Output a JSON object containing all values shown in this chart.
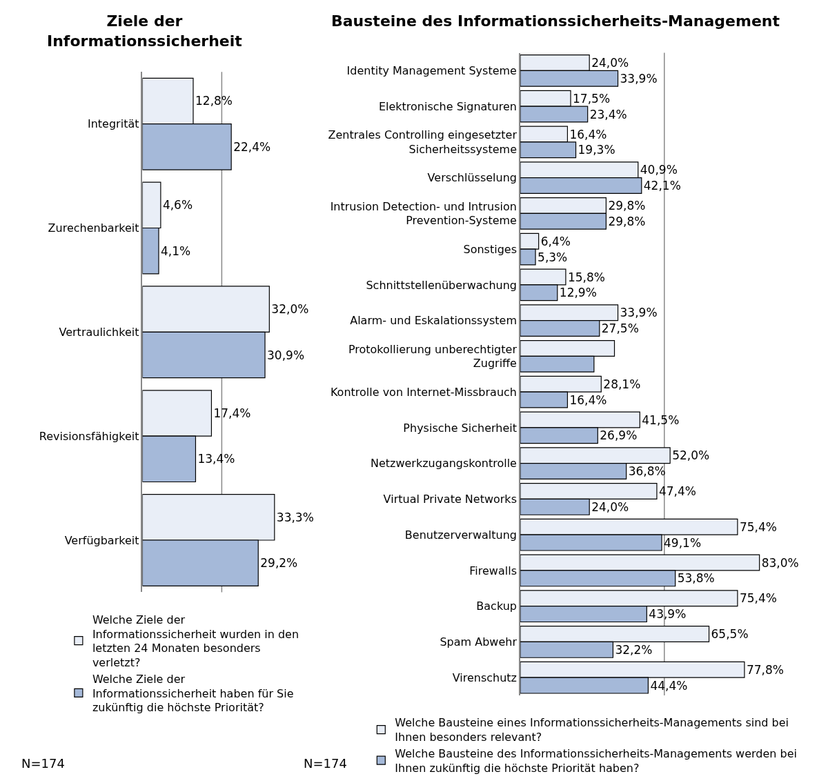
{
  "chart_data": [
    {
      "type": "bar",
      "orientation": "horizontal",
      "title": "Ziele der Informationssicherheit",
      "categories": [
        "Integrität",
        "Zurechenbarkeit",
        "Vertraulichkeit",
        "Revisionsfähigkeit",
        "Verfügbarkeit"
      ],
      "ref_lines": [
        {
          "axis": "x",
          "value": 20,
          "color": "#888888"
        }
      ],
      "tick_labels": "y",
      "legend": "bottom",
      "series": [
        {
          "name": "Welche Ziele der Informationssicherheit wurden in den letzten 24 Monaten besonders verletzt?",
          "color": "#e9eef7",
          "values": [
            12.8,
            4.6,
            32.0,
            17.4,
            33.3
          ],
          "value_labels": [
            "12,8%",
            "4,6%",
            "32,0%",
            "17,4%",
            "33,3%"
          ]
        },
        {
          "name": "Welche Ziele der Informationssicherheit haben für Sie zukünftig die höchste Priorität?",
          "color": "#a5b9d9",
          "values": [
            22.4,
            4.1,
            30.9,
            13.4,
            29.2
          ],
          "value_labels": [
            "22,4%",
            "4,1%",
            "30,9%",
            "13,4%",
            "29,2%"
          ]
        }
      ],
      "annotations": [
        "N=174"
      ]
    },
    {
      "type": "bar",
      "orientation": "horizontal",
      "title": "Bausteine des Informationssicherheits-Management",
      "categories": [
        "Identity Management Systeme",
        "Elektronische Signaturen",
        "Zentrales Controlling eingesetzter Sicherheitssysteme",
        "Verschlüsselung",
        "Intrusion Detection- und Intrusion Prevention-Systeme",
        "Sonstiges",
        "Schnittstellenüberwachung",
        "Alarm- und Eskalationssystem",
        "Protokollierung unberechtigter Zugriffe",
        "Kontrolle von Internet-Missbrauch",
        "Physische Sicherheit",
        "Netzwerkzugangskontrolle",
        "Virtual Private Networks",
        "Benutzerverwaltung",
        "Firewalls",
        "Backup",
        "Spam Abwehr",
        "Virenschutz"
      ],
      "ref_lines": [
        {
          "axis": "x",
          "value": 50,
          "color": "#888888"
        }
      ],
      "tick_labels": "y",
      "legend": "bottom",
      "series": [
        {
          "name": "Welche Bausteine eines Informationssicherheits-Managements sind bei Ihnen besonders relevant?",
          "color": "#e9eef7",
          "values": [
            24.0,
            17.5,
            16.4,
            40.9,
            29.8,
            6.4,
            15.8,
            33.9,
            32.7,
            28.1,
            41.5,
            52.0,
            47.4,
            75.4,
            83.0,
            75.4,
            65.5,
            77.8
          ],
          "value_labels": [
            "24,0%",
            "17,5%",
            "16,4%",
            "40,9%",
            "29,8%",
            "6,4%",
            "15,8%",
            "33,9%",
            null,
            "28,1%",
            "41,5%",
            "52,0%",
            "47,4%",
            "75,4%",
            "83,0%",
            "75,4%",
            "65,5%",
            "77,8%"
          ]
        },
        {
          "name": "Welche Bausteine des Informationssicherheits-Managements werden bei Ihnen zukünftig die höchste Priorität haben?",
          "color": "#a5b9d9",
          "values": [
            33.9,
            23.4,
            19.3,
            42.1,
            29.8,
            5.3,
            12.9,
            27.5,
            25.6,
            16.4,
            26.9,
            36.8,
            24.0,
            49.1,
            53.8,
            43.9,
            32.2,
            44.4
          ],
          "value_labels": [
            "33,9%",
            "23,4%",
            "19,3%",
            "42,1%",
            "29,8%",
            "5,3%",
            "12,9%",
            "27,5%",
            null,
            "16,4%",
            "26,9%",
            "36,8%",
            "24,0%",
            "49,1%",
            "53,8%",
            "43,9%",
            "32,2%",
            "44,4%"
          ]
        }
      ],
      "annotations": [
        "N=174"
      ]
    }
  ]
}
